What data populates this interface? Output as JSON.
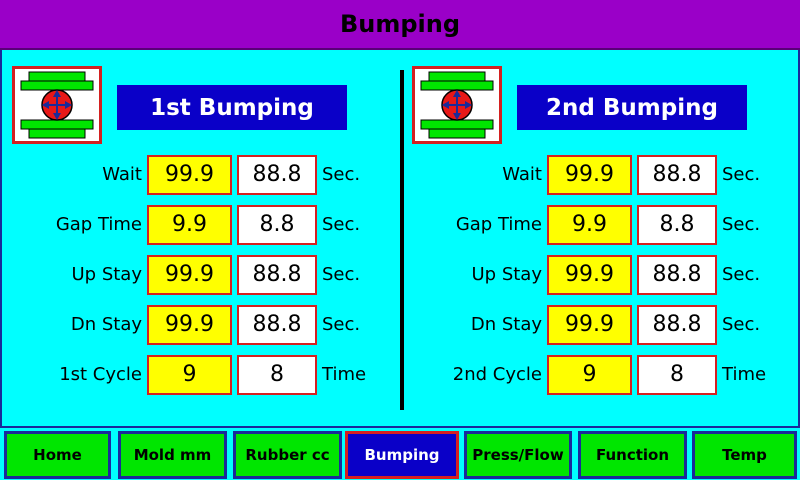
{
  "header": {
    "title": "Bumping"
  },
  "panels": [
    {
      "title": "1st Bumping",
      "icon": "mold-press-icon",
      "rows": [
        {
          "label": "Wait",
          "set": "99.9",
          "actual": "88.8",
          "unit": "Sec."
        },
        {
          "label": "Gap Time",
          "set": "9.9",
          "actual": "8.8",
          "unit": "Sec."
        },
        {
          "label": "Up Stay",
          "set": "99.9",
          "actual": "88.8",
          "unit": "Sec."
        },
        {
          "label": "Dn Stay",
          "set": "99.9",
          "actual": "88.8",
          "unit": "Sec."
        },
        {
          "label": "1st Cycle",
          "set": "9",
          "actual": "8",
          "unit": "Time"
        }
      ]
    },
    {
      "title": "2nd Bumping",
      "icon": "mold-press-icon",
      "rows": [
        {
          "label": "Wait",
          "set": "99.9",
          "actual": "88.8",
          "unit": "Sec."
        },
        {
          "label": "Gap Time",
          "set": "9.9",
          "actual": "8.8",
          "unit": "Sec."
        },
        {
          "label": "Up Stay",
          "set": "99.9",
          "actual": "88.8",
          "unit": "Sec."
        },
        {
          "label": "Dn Stay",
          "set": "99.9",
          "actual": "88.8",
          "unit": "Sec."
        },
        {
          "label": "2nd Cycle",
          "set": "9",
          "actual": "8",
          "unit": "Time"
        }
      ]
    }
  ],
  "nav": {
    "active": 3,
    "items": [
      {
        "label": "Home"
      },
      {
        "label": "Mold mm"
      },
      {
        "label": "Rubber cc"
      },
      {
        "label": "Bumping"
      },
      {
        "label": "Press/Flow"
      },
      {
        "label": "Function"
      },
      {
        "label": "Temp"
      }
    ]
  },
  "colors": {
    "header_bg": "#9a00c8",
    "screen_bg": "#00ffff",
    "title_bg": "#0a00c8",
    "set_value_bg": "#ffff00",
    "actual_value_bg": "#ffffff",
    "field_border": "#d42020",
    "nav_bg": "#00e600",
    "nav_active_bg": "#0a00c8"
  }
}
